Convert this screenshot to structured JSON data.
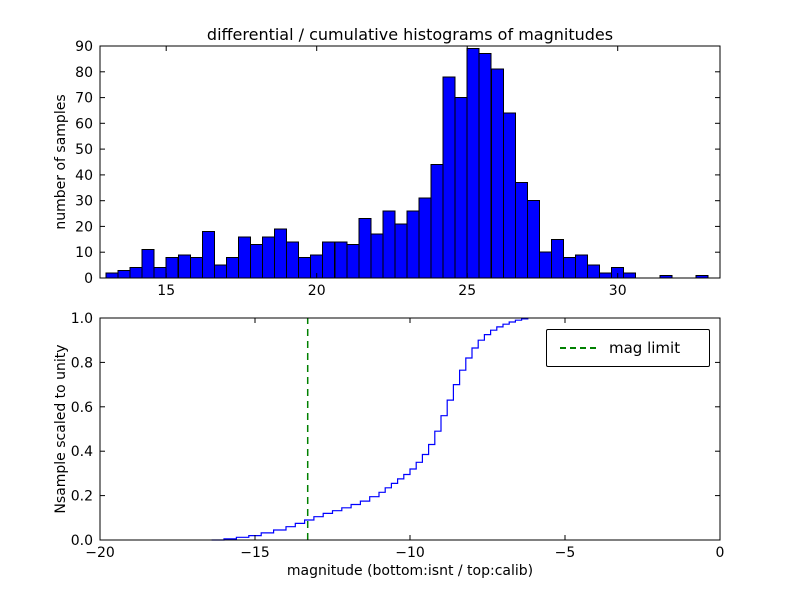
{
  "figure": {
    "background": "#ffffff"
  },
  "chart_data": [
    {
      "type": "bar",
      "title": "differential / cumulative histograms of magnitudes",
      "ylabel": "number of samples",
      "xlabel": "",
      "xlim": [
        12.8,
        33.4
      ],
      "ylim": [
        0,
        90
      ],
      "xticks": [
        15,
        20,
        25,
        30
      ],
      "xtick_labels": [
        "15",
        "20",
        "25",
        "30"
      ],
      "yticks": [
        0,
        10,
        20,
        30,
        40,
        50,
        60,
        70,
        80,
        90
      ],
      "ytick_labels": [
        "0",
        "10",
        "20",
        "30",
        "40",
        "50",
        "60",
        "70",
        "80",
        "90"
      ],
      "bin_start": 13.0,
      "bin_width": 0.4,
      "values": [
        2,
        3,
        4,
        11,
        4,
        8,
        9,
        8,
        18,
        5,
        8,
        16,
        13,
        16,
        19,
        14,
        8,
        9,
        14,
        14,
        13,
        23,
        17,
        26,
        21,
        26,
        31,
        44,
        78,
        70,
        89,
        87,
        81,
        64,
        37,
        30,
        10,
        15,
        8,
        9,
        5,
        2,
        4,
        2,
        0,
        0,
        1,
        0,
        0,
        1
      ],
      "bar_color": "#0000ff",
      "bar_edge_color": "#000000",
      "grid": false,
      "legend_position": "none"
    },
    {
      "type": "line",
      "step": true,
      "title": "",
      "ylabel": "Nsample scaled to unity",
      "xlabel": "magnitude (bottom:isnt / top:calib)",
      "xlim": [
        -20,
        0
      ],
      "ylim": [
        0,
        1.0
      ],
      "xticks": [
        -20,
        -15,
        -10,
        -5,
        0
      ],
      "xtick_labels": [
        "−20",
        "−15",
        "−10",
        "−5",
        "0"
      ],
      "yticks": [
        0,
        0.2,
        0.4,
        0.6,
        0.8,
        1.0
      ],
      "ytick_labels": [
        "0.0",
        "0.2",
        "0.4",
        "0.6",
        "0.8",
        "1.0"
      ],
      "line_color": "#0000ff",
      "points": [
        [
          -16.4,
          0
        ],
        [
          -16.0,
          0.005
        ],
        [
          -15.6,
          0.012
        ],
        [
          -15.2,
          0.02
        ],
        [
          -14.8,
          0.032
        ],
        [
          -14.4,
          0.045
        ],
        [
          -14.0,
          0.06
        ],
        [
          -13.7,
          0.075
        ],
        [
          -13.4,
          0.09
        ],
        [
          -13.1,
          0.105
        ],
        [
          -12.8,
          0.12
        ],
        [
          -12.5,
          0.132
        ],
        [
          -12.2,
          0.145
        ],
        [
          -11.9,
          0.16
        ],
        [
          -11.6,
          0.175
        ],
        [
          -11.3,
          0.195
        ],
        [
          -11.0,
          0.215
        ],
        [
          -10.8,
          0.235
        ],
        [
          -10.6,
          0.255
        ],
        [
          -10.4,
          0.275
        ],
        [
          -10.2,
          0.295
        ],
        [
          -10.0,
          0.32
        ],
        [
          -9.8,
          0.35
        ],
        [
          -9.6,
          0.385
        ],
        [
          -9.4,
          0.43
        ],
        [
          -9.2,
          0.49
        ],
        [
          -9.0,
          0.56
        ],
        [
          -8.8,
          0.63
        ],
        [
          -8.6,
          0.7
        ],
        [
          -8.4,
          0.765
        ],
        [
          -8.2,
          0.82
        ],
        [
          -8.0,
          0.865
        ],
        [
          -7.8,
          0.9
        ],
        [
          -7.6,
          0.925
        ],
        [
          -7.4,
          0.945
        ],
        [
          -7.2,
          0.96
        ],
        [
          -7.0,
          0.972
        ],
        [
          -6.8,
          0.982
        ],
        [
          -6.6,
          0.99
        ],
        [
          -6.4,
          0.996
        ],
        [
          -6.2,
          1.0
        ]
      ],
      "vline": {
        "x": -13.3,
        "color": "#008000",
        "style": "dashed",
        "label": "mag limit"
      },
      "legend": {
        "label": "mag limit",
        "position": "upper right"
      },
      "grid": false
    }
  ]
}
